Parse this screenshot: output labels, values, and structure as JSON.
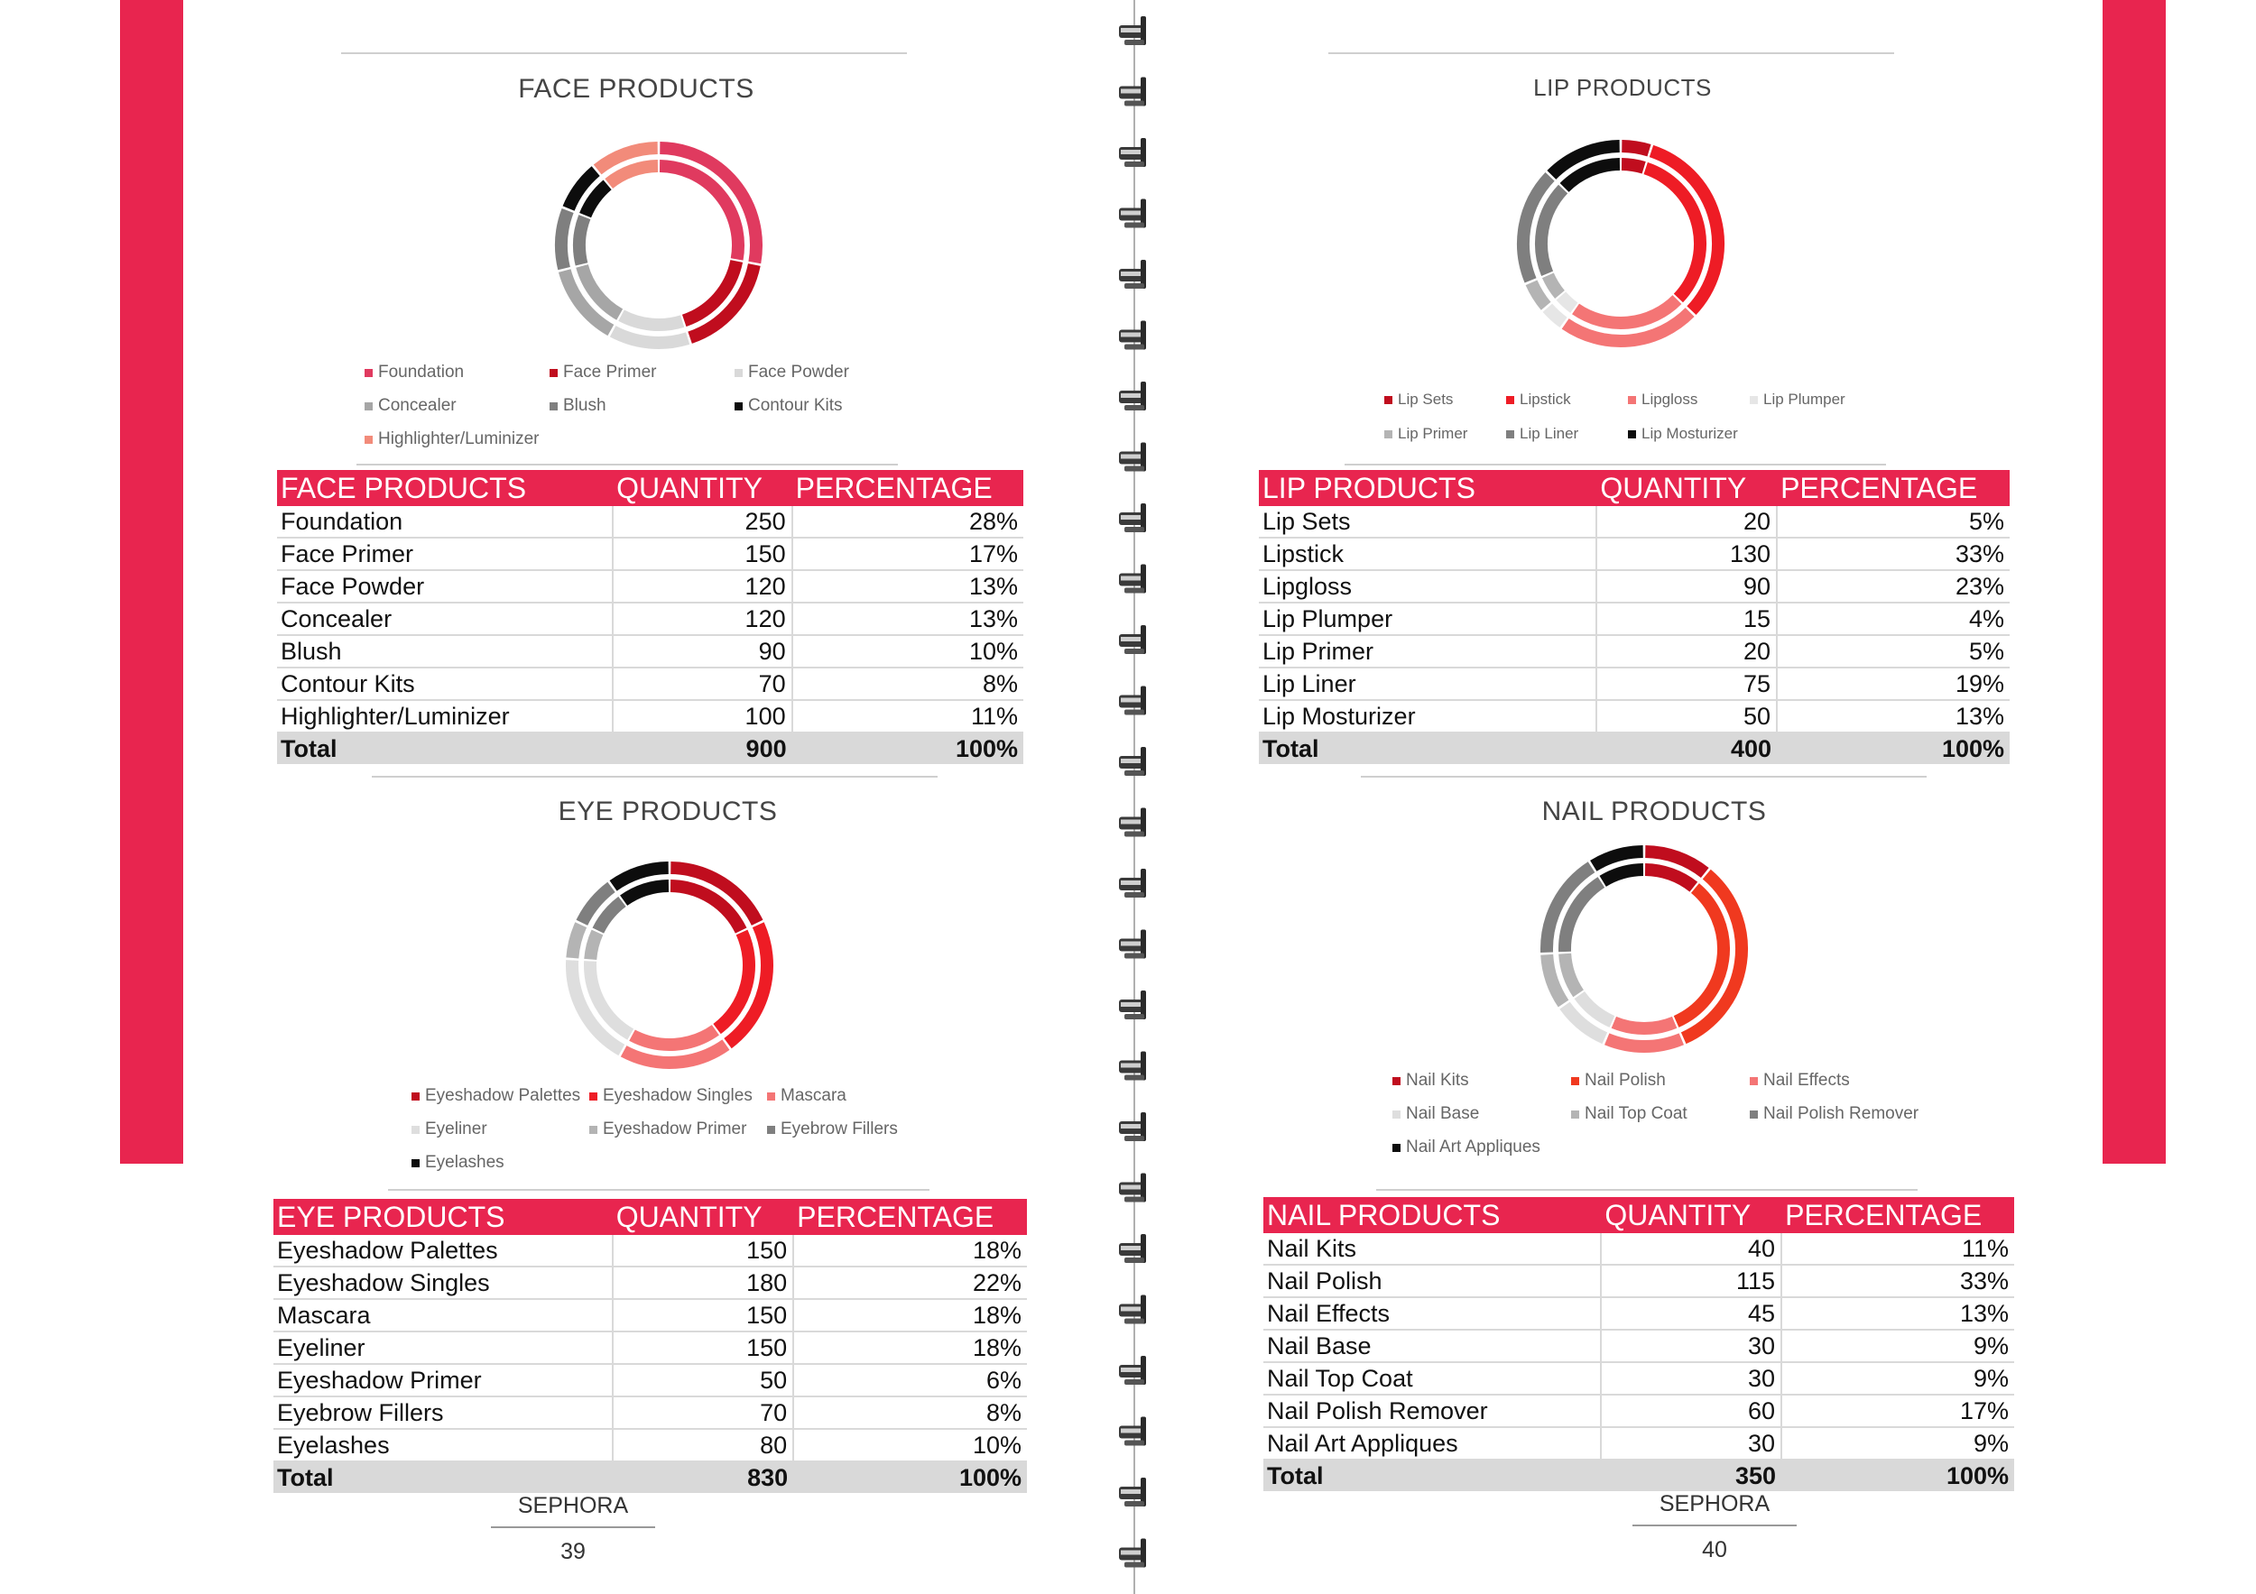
{
  "pages": {
    "left": {
      "brand": "SEPHORA",
      "number": "39"
    },
    "right": {
      "brand": "SEPHORA",
      "number": "40"
    }
  },
  "chart_data": [
    {
      "id": "face",
      "type": "pie",
      "title": "FACE PRODUCTS",
      "categories": [
        "Foundation",
        "Face Primer",
        "Face Powder",
        "Concealer",
        "Blush",
        "Contour Kits",
        "Highlighter/Luminizer"
      ],
      "quantity": [
        250,
        150,
        120,
        120,
        90,
        70,
        100
      ],
      "values": [
        28,
        17,
        13,
        13,
        10,
        8,
        11
      ],
      "value_labels": [
        "28%",
        "17%",
        "13%",
        "13%",
        "10%",
        "8%",
        "11%"
      ],
      "colors": [
        "#e03a5f",
        "#c00d1e",
        "#d9d9d9",
        "#a6a6a6",
        "#7f7f7f",
        "#0d0d0d",
        "#f28b7a"
      ],
      "table": {
        "headers": [
          "FACE PRODUCTS",
          "QUANTITY",
          "PERCENTAGE"
        ],
        "total": [
          "Total",
          "900",
          "100%"
        ]
      }
    },
    {
      "id": "eye",
      "type": "pie",
      "title": "EYE PRODUCTS",
      "categories": [
        "Eyeshadow Palettes",
        "Eyeshadow Singles",
        "Mascara",
        "Eyeliner",
        "Eyeshadow Primer",
        "Eyebrow Fillers",
        "Eyelashes"
      ],
      "quantity": [
        150,
        180,
        150,
        150,
        50,
        70,
        80
      ],
      "values": [
        18,
        22,
        18,
        18,
        6,
        8,
        10
      ],
      "value_labels": [
        "18%",
        "22%",
        "18%",
        "18%",
        "6%",
        "8%",
        "10%"
      ],
      "colors": [
        "#c00d1e",
        "#ee1c25",
        "#f47575",
        "#dedede",
        "#b4b4b4",
        "#7f7f7f",
        "#0d0d0d"
      ],
      "table": {
        "headers": [
          "EYE PRODUCTS",
          "QUANTITY",
          "PERCENTAGE"
        ],
        "total": [
          "Total",
          "830",
          "100%"
        ]
      }
    },
    {
      "id": "lip",
      "type": "pie",
      "title": "LIP PRODUCTS",
      "categories": [
        "Lip Sets",
        "Lipstick",
        "Lipgloss",
        "Lip Plumper",
        "Lip Primer",
        "Lip Liner",
        "Lip Mosturizer"
      ],
      "quantity": [
        20,
        130,
        90,
        15,
        20,
        75,
        50
      ],
      "values": [
        5,
        33,
        23,
        4,
        5,
        19,
        13
      ],
      "value_labels": [
        "5%",
        "33%",
        "23%",
        "4%",
        "5%",
        "19%",
        "13%"
      ],
      "colors": [
        "#c00d1e",
        "#ee1c25",
        "#f47575",
        "#e6e6e6",
        "#b4b4b4",
        "#7f7f7f",
        "#0d0d0d"
      ],
      "table": {
        "headers": [
          "LIP PRODUCTS",
          "QUANTITY",
          "PERCENTAGE"
        ],
        "total": [
          "Total",
          "400",
          "100%"
        ]
      }
    },
    {
      "id": "nail",
      "type": "pie",
      "title": "NAIL PRODUCTS",
      "categories": [
        "Nail Kits",
        "Nail Polish",
        "Nail Effects",
        "Nail Base",
        "Nail Top Coat",
        "Nail Polish Remover",
        "Nail Art Appliques"
      ],
      "quantity": [
        40,
        115,
        45,
        30,
        30,
        60,
        30
      ],
      "values": [
        11,
        33,
        13,
        9,
        9,
        17,
        9
      ],
      "value_labels": [
        "11%",
        "33%",
        "13%",
        "9%",
        "9%",
        "17%",
        "9%"
      ],
      "colors": [
        "#c00d1e",
        "#f0391f",
        "#f47575",
        "#dedede",
        "#b4b4b4",
        "#7f7f7f",
        "#0d0d0d"
      ],
      "table": {
        "headers": [
          "NAIL PRODUCTS",
          "QUANTITY",
          "PERCENTAGE"
        ],
        "total": [
          "Total",
          "350",
          "100%"
        ]
      }
    }
  ]
}
